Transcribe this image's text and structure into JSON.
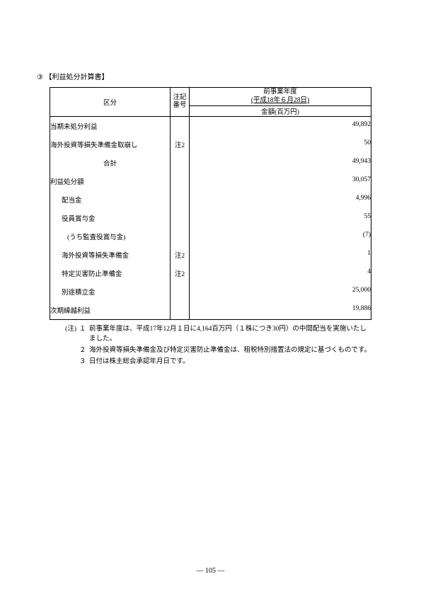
{
  "section_num": "③",
  "section_title": "【利益処分計算書】",
  "header": {
    "kubun": "区分",
    "chuuki_line1": "注記",
    "chuuki_line2": "番号",
    "period_line1": "前事業年度",
    "period_line2": "(平成18年６月28日)",
    "amount_label": "金額(百万円)"
  },
  "rows": [
    {
      "label": "当期未処分利益",
      "note": "",
      "amount": "49,892",
      "indent": 0
    },
    {
      "label": "海外投資等損失準備金取崩し",
      "note": "注2",
      "amount": "50",
      "indent": 0
    },
    {
      "label": "合計",
      "note": "",
      "amount": "49,943",
      "indent": 0,
      "center": true
    },
    {
      "label": "利益処分額",
      "note": "",
      "amount": "30,057",
      "indent": 0
    },
    {
      "label": "配当金",
      "note": "",
      "amount": "4,996",
      "indent": 1
    },
    {
      "label": "役員賞与金",
      "note": "",
      "amount": "55",
      "indent": 1
    },
    {
      "label": "(うち監査役賞与金)",
      "note": "",
      "amount": "(7)",
      "indent": 2
    },
    {
      "label": "海外投資等損失準備金",
      "note": "注2",
      "amount": "1",
      "indent": 1
    },
    {
      "label": "特定災害防止準備金",
      "note": "注2",
      "amount": "4",
      "indent": 1
    },
    {
      "label": "別途積立金",
      "note": "",
      "amount": "25,000",
      "indent": 1
    },
    {
      "label": "次期繰越利益",
      "note": "",
      "amount": "19,886",
      "indent": 0
    }
  ],
  "notes": {
    "prefix": "(注)",
    "items": [
      {
        "n": "１",
        "text": "前事業年度は、平成17年12月１日に4,164百万円（１株につき30円）の中間配当を実施いたしました。"
      },
      {
        "n": "２",
        "text": "海外投資等損失準備金及び特定災害防止準備金は、租税特別措置法の規定に基づくものです。"
      },
      {
        "n": "３",
        "text": "日付は株主総会承認年月日です。"
      }
    ]
  },
  "page_number": "― 105 ―"
}
